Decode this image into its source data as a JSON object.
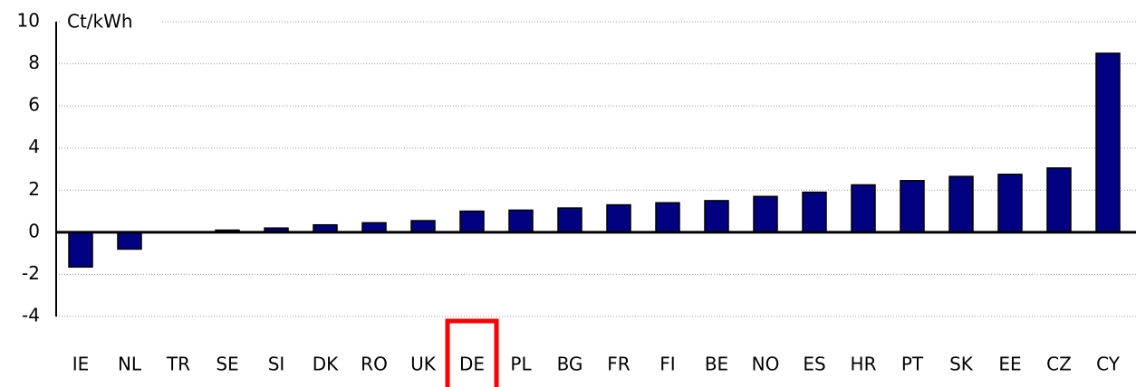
{
  "chart_data": {
    "type": "bar",
    "y_label": "Ct/kWh",
    "categories": [
      "IE",
      "NL",
      "TR",
      "SE",
      "SI",
      "DK",
      "RO",
      "UK",
      "DE",
      "PL",
      "BG",
      "FR",
      "FI",
      "BE",
      "NO",
      "ES",
      "HR",
      "PT",
      "SK",
      "EE",
      "CZ",
      "CY"
    ],
    "values": [
      -1.65,
      -0.8,
      0.02,
      0.1,
      0.2,
      0.35,
      0.45,
      0.55,
      1.0,
      1.05,
      1.15,
      1.3,
      1.4,
      1.5,
      1.7,
      1.9,
      2.25,
      2.45,
      2.65,
      2.75,
      3.05,
      8.5
    ],
    "color": "#000080",
    "ylim": [
      -4,
      10
    ],
    "yticks": [
      -4,
      -2,
      0,
      2,
      4,
      6,
      8,
      10
    ],
    "grid": true,
    "highlight": "DE",
    "highlight_color": "#ff0000"
  }
}
